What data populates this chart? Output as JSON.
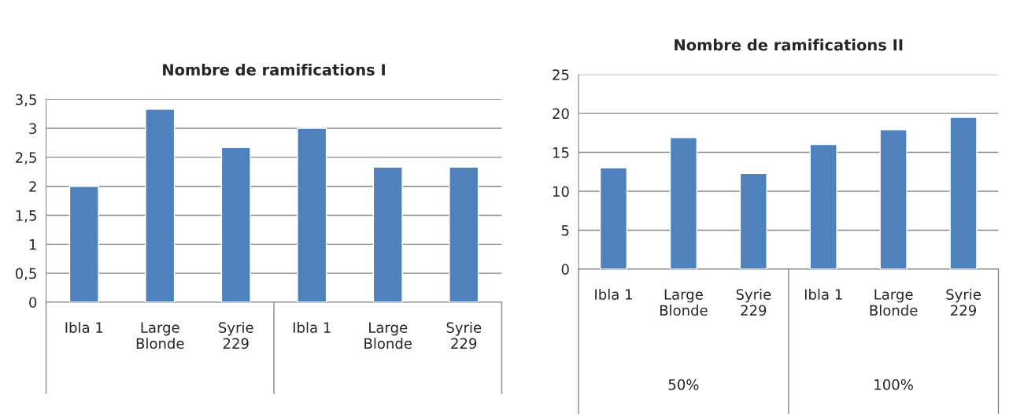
{
  "chart_data": [
    {
      "type": "bar",
      "title": "Nombre de ramifications I",
      "categories": [
        "Ibla 1",
        "Large\nBlonde",
        "Syrie\n229",
        "Ibla 1",
        "Large\nBlonde",
        "Syrie\n229"
      ],
      "values": [
        2,
        3.33,
        2.67,
        3,
        2.33,
        2.33
      ],
      "color": "#4f81bd",
      "ylim": [
        0,
        3.5
      ],
      "yticks": [
        0,
        {
          "value": 0.5,
          "label": "0,5"
        },
        1,
        {
          "value": 1.5,
          "label": "1,5"
        },
        2,
        {
          "value": 2.5,
          "label": "2,5"
        },
        3,
        {
          "value": 3.5,
          "label": "3,5"
        }
      ],
      "grid": "y"
    },
    {
      "type": "bar",
      "title": "Nombre de ramifications II",
      "categories": [
        "Ibla 1",
        "Large\nBlonde",
        "Syrie\n229",
        "Ibla 1",
        "Large\nBlonde",
        "Syrie\n229"
      ],
      "values": [
        13,
        16.9,
        12.3,
        16,
        17.9,
        19.5
      ],
      "color": "#4f81bd",
      "ylim": [
        0,
        25
      ],
      "yticks": [
        0,
        5,
        10,
        15,
        20,
        25
      ],
      "grid": "y",
      "annotations": [
        "50%",
        "100%"
      ]
    }
  ]
}
